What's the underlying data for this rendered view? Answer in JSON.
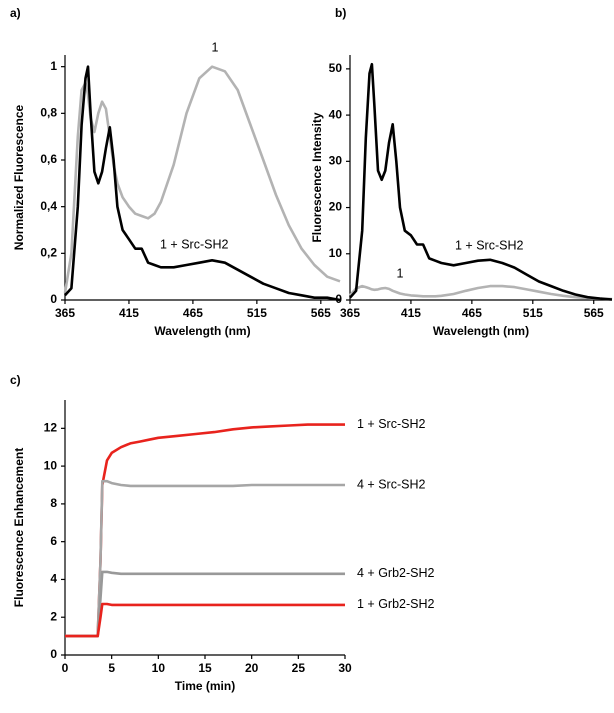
{
  "chart_data": [
    {
      "type": "line",
      "panel_label": "a)",
      "x_label": "Wavelength (nm)",
      "y_label": "Normalized Fluorescence",
      "x": [
        365,
        370,
        375,
        378,
        381,
        383,
        385,
        388,
        391,
        394,
        397,
        400,
        403,
        406,
        410,
        415,
        420,
        425,
        430,
        435,
        440,
        450,
        460,
        470,
        480,
        490,
        500,
        510,
        520,
        530,
        540,
        550,
        560,
        570,
        580
      ],
      "series": [
        {
          "name": "1",
          "color": "#b3b3b3",
          "values": [
            0.03,
            0.2,
            0.7,
            0.9,
            0.93,
            0.88,
            0.78,
            0.72,
            0.8,
            0.85,
            0.82,
            0.7,
            0.58,
            0.5,
            0.44,
            0.4,
            0.37,
            0.36,
            0.35,
            0.37,
            0.42,
            0.58,
            0.8,
            0.95,
            1.0,
            0.98,
            0.9,
            0.75,
            0.6,
            0.45,
            0.32,
            0.22,
            0.15,
            0.1,
            0.08
          ]
        },
        {
          "name": "1 + Src-SH2",
          "color": "#000000",
          "values": [
            0.02,
            0.05,
            0.4,
            0.75,
            0.95,
            1.0,
            0.8,
            0.55,
            0.5,
            0.55,
            0.65,
            0.74,
            0.6,
            0.4,
            0.3,
            0.26,
            0.22,
            0.22,
            0.16,
            0.15,
            0.14,
            0.14,
            0.15,
            0.16,
            0.17,
            0.16,
            0.13,
            0.1,
            0.07,
            0.05,
            0.03,
            0.02,
            0.01,
            0.01,
            0.0
          ]
        }
      ],
      "xlim": [
        365,
        580
      ],
      "xticks": [
        365,
        415,
        465,
        515,
        565
      ],
      "ylim": [
        0,
        1.05
      ],
      "yticks": [
        0,
        {
          "value": 0.2,
          "label": "0,2"
        },
        {
          "value": 0.4,
          "label": "0,4"
        },
        {
          "value": 0.6,
          "label": "0,6"
        },
        {
          "value": 0.8,
          "label": "0,8"
        },
        1
      ]
    },
    {
      "type": "line",
      "panel_label": "b)",
      "x_label": "Wavelength (nm)",
      "y_label": "Fluorescence Intensity",
      "x": [
        365,
        370,
        375,
        378,
        381,
        383,
        385,
        388,
        391,
        394,
        397,
        400,
        403,
        406,
        410,
        415,
        420,
        425,
        430,
        435,
        440,
        450,
        460,
        470,
        480,
        490,
        500,
        510,
        520,
        530,
        540,
        550,
        560,
        570,
        580
      ],
      "series": [
        {
          "name": "1",
          "color": "#b3b3b3",
          "values": [
            1,
            2.5,
            3,
            2.8,
            2.5,
            2.3,
            2.2,
            2.3,
            2.5,
            2.6,
            2.4,
            2,
            1.7,
            1.4,
            1.2,
            1,
            0.9,
            0.8,
            0.8,
            0.8,
            0.9,
            1.3,
            2,
            2.6,
            3,
            3,
            2.8,
            2.3,
            1.8,
            1.3,
            0.9,
            0.6,
            0.4,
            0.3,
            0.2
          ]
        },
        {
          "name": "1 + Src-SH2",
          "color": "#000000",
          "values": [
            0.5,
            2,
            15,
            35,
            49,
            51,
            42,
            28,
            26,
            28,
            34,
            38,
            30,
            20,
            15,
            14,
            12,
            12,
            9,
            8.5,
            8,
            7.5,
            8,
            8.5,
            8.7,
            8,
            7,
            5.5,
            4,
            3,
            2,
            1.2,
            0.6,
            0.3,
            0.1
          ]
        }
      ],
      "xlim": [
        365,
        580
      ],
      "xticks": [
        365,
        415,
        465,
        515,
        565
      ],
      "ylim": [
        0,
        53
      ],
      "yticks": [
        0,
        10,
        20,
        30,
        40,
        50
      ]
    },
    {
      "type": "line",
      "panel_label": "c)",
      "x_label": "Time (min)",
      "y_label": "Fluorescence Enhancement",
      "x": [
        0,
        1,
        2,
        3,
        3.5,
        3.8,
        4,
        4.5,
        5,
        6,
        7,
        8,
        9,
        10,
        12,
        14,
        16,
        18,
        20,
        22,
        24,
        26,
        28,
        30
      ],
      "series": [
        {
          "name": "1 + Src-SH2",
          "color": "#e8231d",
          "label_color": "#e8231d",
          "values": [
            1,
            1,
            1,
            1,
            1,
            5,
            9,
            10.3,
            10.7,
            11,
            11.2,
            11.3,
            11.4,
            11.5,
            11.6,
            11.7,
            11.8,
            11.95,
            12.05,
            12.1,
            12.15,
            12.2,
            12.2,
            12.2
          ]
        },
        {
          "name": "4 + Src-SH2",
          "color": "#a6a6a6",
          "label_color": "#000000",
          "values": [
            1,
            1,
            1,
            1,
            1,
            5,
            9.2,
            9.2,
            9.1,
            9,
            8.95,
            8.95,
            8.95,
            8.95,
            8.95,
            8.95,
            8.95,
            8.95,
            9,
            9,
            9,
            9,
            9,
            9
          ]
        },
        {
          "name": "4 + Grb2-SH2",
          "color": "#999999",
          "label_color": "#000000",
          "values": [
            1,
            1,
            1,
            1,
            1,
            3,
            4.4,
            4.4,
            4.35,
            4.3,
            4.3,
            4.3,
            4.3,
            4.3,
            4.3,
            4.3,
            4.3,
            4.3,
            4.3,
            4.3,
            4.3,
            4.3,
            4.3,
            4.3
          ]
        },
        {
          "name": "1 + Grb2-SH2",
          "color": "#e8231d",
          "label_color": "#e8231d",
          "values": [
            1,
            1,
            1,
            1,
            1,
            2,
            2.7,
            2.7,
            2.65,
            2.65,
            2.65,
            2.65,
            2.65,
            2.65,
            2.65,
            2.65,
            2.65,
            2.65,
            2.65,
            2.65,
            2.65,
            2.65,
            2.65,
            2.65
          ]
        }
      ],
      "xlim": [
        0,
        30
      ],
      "xticks": [
        0,
        5,
        10,
        15,
        20,
        25,
        30
      ],
      "ylim": [
        0,
        13.5
      ],
      "yticks": [
        0,
        2,
        4,
        6,
        8,
        10,
        12
      ]
    }
  ]
}
